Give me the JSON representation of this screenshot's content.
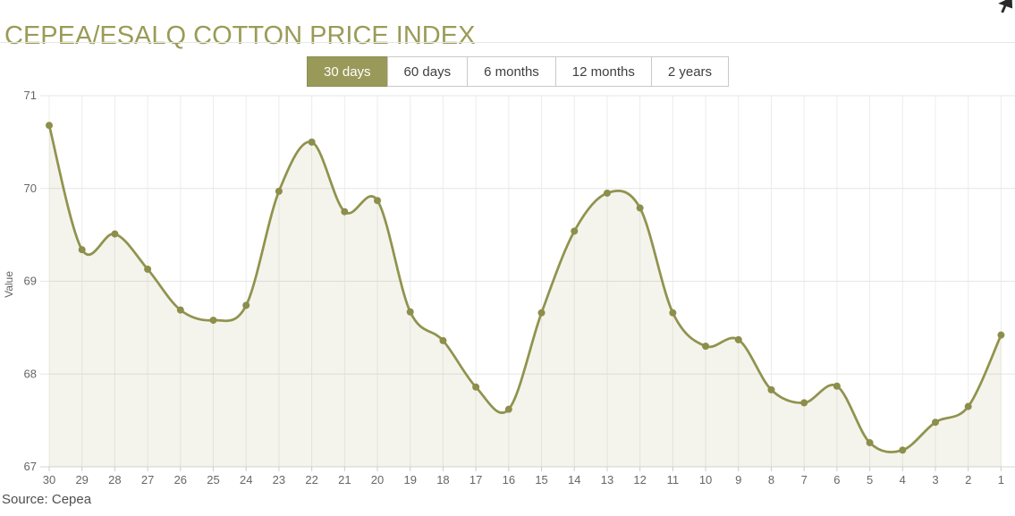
{
  "header": {
    "title": "CEPEA/ESALQ COTTON PRICE INDEX"
  },
  "range_buttons": [
    {
      "label": "30 days",
      "active": true
    },
    {
      "label": "60 days",
      "active": false
    },
    {
      "label": "6 months",
      "active": false
    },
    {
      "label": "12 months",
      "active": false
    },
    {
      "label": "2 years",
      "active": false
    }
  ],
  "source": {
    "text": "Source: Cepea"
  },
  "colors": {
    "accent_olive": "#9a9b57",
    "line": "#91934e",
    "marker": "#8c8e4b",
    "area_fill": "rgba(150,152,78,0.10)",
    "grid_horizontal": "#e6e6e6",
    "grid_vertical": "#ececea",
    "axis_line": "#d6d6d4",
    "tick": "#cccccc",
    "axis_text": "#666666",
    "button_active_bg": "#99995a"
  },
  "chart_data": {
    "type": "area",
    "title": "CEPEA/ESALQ COTTON PRICE INDEX",
    "xlabel": "",
    "ylabel": "Value",
    "legend": "none",
    "grid": true,
    "marker": "circle",
    "ylim": [
      67,
      71
    ],
    "y_ticks": [
      67,
      68,
      69,
      70,
      71
    ],
    "categories": [
      "30",
      "29",
      "28",
      "27",
      "26",
      "25",
      "24",
      "23",
      "22",
      "21",
      "20",
      "19",
      "18",
      "17",
      "16",
      "15",
      "14",
      "13",
      "12",
      "11",
      "10",
      "9",
      "8",
      "7",
      "6",
      "5",
      "4",
      "3",
      "2",
      "1"
    ],
    "values": [
      70.68,
      69.34,
      69.51,
      69.13,
      68.69,
      68.58,
      68.74,
      69.97,
      70.5,
      69.75,
      69.87,
      68.67,
      68.36,
      67.86,
      67.62,
      68.66,
      69.54,
      69.95,
      69.79,
      68.66,
      68.3,
      68.37,
      67.83,
      67.69,
      67.87,
      67.26,
      67.18,
      67.48,
      67.65,
      68.42
    ]
  }
}
